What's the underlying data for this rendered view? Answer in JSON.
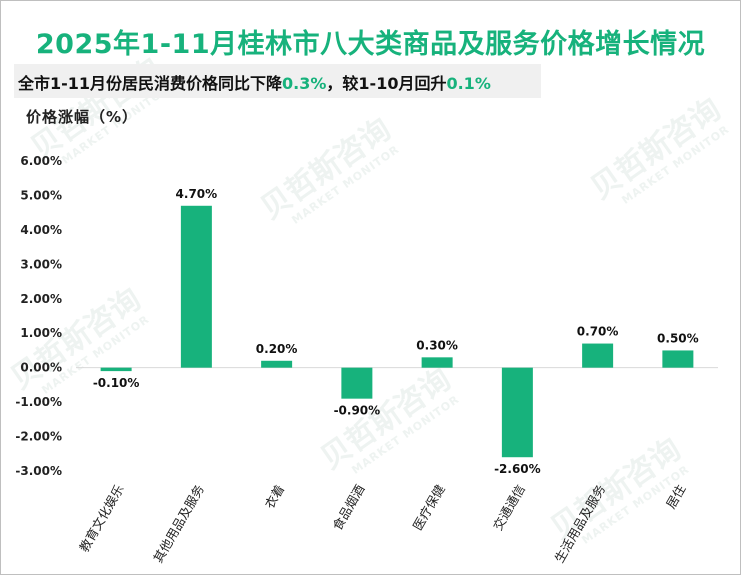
{
  "header": {
    "title": "2025年1-11月桂林市八大类商品及服务价格增长情况",
    "subtitle_prefix": "全市1-11月份居民消费价格同比下降",
    "subtitle_value1": "0.3%",
    "subtitle_mid": "，较1-10月回升",
    "subtitle_value2": "0.1%"
  },
  "watermark": {
    "text": "贝哲斯咨询",
    "sub": "MARKET MONITOR"
  },
  "chart_data": {
    "type": "bar",
    "ylabel": "价格涨幅（%）",
    "categories": [
      "教育文化娱乐",
      "其他用品及服务",
      "衣着",
      "食品烟酒",
      "医疗保健",
      "交通通信",
      "生活用品及服务",
      "居住"
    ],
    "values": [
      -0.1,
      4.7,
      0.2,
      -0.9,
      0.3,
      -2.6,
      0.7,
      0.5
    ],
    "data_labels": [
      "-0.10%",
      "4.70%",
      "0.20%",
      "-0.90%",
      "0.30%",
      "-2.60%",
      "0.70%",
      "0.50%"
    ],
    "yticks": [
      6,
      5,
      4,
      3,
      2,
      1,
      0,
      -1,
      -2,
      -3
    ],
    "ytick_labels": [
      "6.00%",
      "5.00%",
      "4.00%",
      "3.00%",
      "2.00%",
      "1.00%",
      "0.00%",
      "-1.00%",
      "-2.00%",
      "-3.00%"
    ],
    "ylim": [
      -3,
      6
    ],
    "bar_color": "#17b27c",
    "grid": false,
    "legend": "none"
  }
}
